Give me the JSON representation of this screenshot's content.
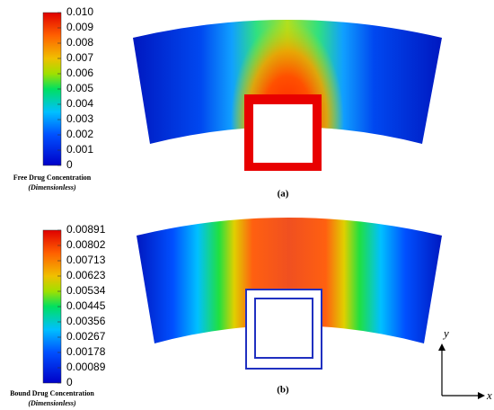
{
  "panels": [
    {
      "colorbar_ticks": [
        "0.010",
        "0.009",
        "0.008",
        "0.007",
        "0.006",
        "0.005",
        "0.004",
        "0.003",
        "0.002",
        "0.001",
        "0"
      ],
      "colorbar_label": "Free Drug Concentration",
      "colorbar_unit": "(Dimensionless)",
      "caption": "(a)"
    },
    {
      "colorbar_ticks": [
        "0.00891",
        "0.00802",
        "0.00713",
        "0.00623",
        "0.00534",
        "0.00445",
        "0.00356",
        "0.00267",
        "0.00178",
        "0.00089",
        "0"
      ],
      "colorbar_label": "Bound Drug Concentration",
      "colorbar_unit": "(Dimensionless)",
      "caption": "(b)"
    }
  ],
  "axes": {
    "y": "y",
    "x": "x"
  }
}
